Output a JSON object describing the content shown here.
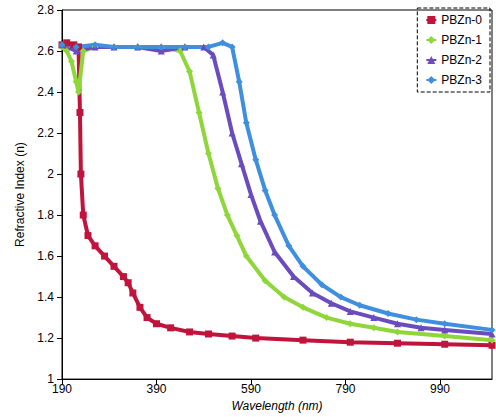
{
  "chart_data": {
    "type": "line",
    "x_label": "Wavelength (nm)",
    "y_label": "Refractive Index (n)",
    "xlim": [
      190,
      1100
    ],
    "xticks": [
      190,
      390,
      590,
      790,
      990
    ],
    "ylim": [
      1,
      2.8
    ],
    "yticks": [
      1,
      1.2,
      1.4,
      1.6,
      1.8,
      2,
      2.2,
      2.4,
      2.6,
      2.8
    ],
    "grid": false,
    "legend": "top-right",
    "series": [
      {
        "name": "PBZn-0",
        "color": "#c0143c",
        "marker": "square",
        "x": [
          190,
          200,
          215,
          225,
          228,
          230,
          235,
          245,
          260,
          280,
          300,
          320,
          330,
          340,
          355,
          370,
          390,
          420,
          460,
          500,
          550,
          600,
          700,
          800,
          900,
          1000,
          1100
        ],
        "values": [
          2.63,
          2.64,
          2.63,
          2.62,
          2.3,
          2.0,
          1.8,
          1.7,
          1.65,
          1.6,
          1.55,
          1.5,
          1.47,
          1.42,
          1.35,
          1.3,
          1.27,
          1.25,
          1.23,
          1.22,
          1.21,
          1.2,
          1.19,
          1.18,
          1.175,
          1.17,
          1.165
        ]
      },
      {
        "name": "PBZn-1",
        "color": "#8fd63a",
        "marker": "diamond",
        "x": [
          190,
          200,
          210,
          220,
          225,
          235,
          260,
          300,
          350,
          400,
          440,
          460,
          480,
          500,
          520,
          540,
          560,
          580,
          620,
          660,
          700,
          750,
          800,
          850,
          900,
          1000,
          1100
        ],
        "values": [
          2.62,
          2.6,
          2.55,
          2.45,
          2.4,
          2.6,
          2.62,
          2.62,
          2.62,
          2.62,
          2.6,
          2.5,
          2.3,
          2.1,
          1.93,
          1.8,
          1.7,
          1.6,
          1.48,
          1.4,
          1.35,
          1.3,
          1.27,
          1.25,
          1.23,
          1.21,
          1.19
        ]
      },
      {
        "name": "PBZn-2",
        "color": "#6a4cbf",
        "marker": "triangle",
        "x": [
          190,
          220,
          260,
          300,
          350,
          400,
          450,
          490,
          510,
          530,
          550,
          570,
          590,
          610,
          640,
          680,
          720,
          760,
          800,
          850,
          900,
          950,
          1000,
          1100
        ],
        "values": [
          2.63,
          2.6,
          2.62,
          2.62,
          2.62,
          2.6,
          2.62,
          2.62,
          2.58,
          2.4,
          2.2,
          2.05,
          1.9,
          1.77,
          1.62,
          1.5,
          1.42,
          1.37,
          1.33,
          1.3,
          1.27,
          1.25,
          1.24,
          1.22
        ]
      },
      {
        "name": "PBZn-3",
        "color": "#3f8fe0",
        "marker": "diamond",
        "x": [
          190,
          220,
          260,
          300,
          350,
          400,
          450,
          500,
          530,
          550,
          565,
          580,
          600,
          620,
          640,
          670,
          700,
          740,
          780,
          820,
          880,
          940,
          1000,
          1100
        ],
        "values": [
          2.63,
          2.62,
          2.63,
          2.62,
          2.62,
          2.62,
          2.62,
          2.62,
          2.64,
          2.62,
          2.45,
          2.25,
          2.07,
          1.92,
          1.8,
          1.65,
          1.55,
          1.46,
          1.4,
          1.36,
          1.32,
          1.29,
          1.27,
          1.24
        ]
      }
    ]
  }
}
